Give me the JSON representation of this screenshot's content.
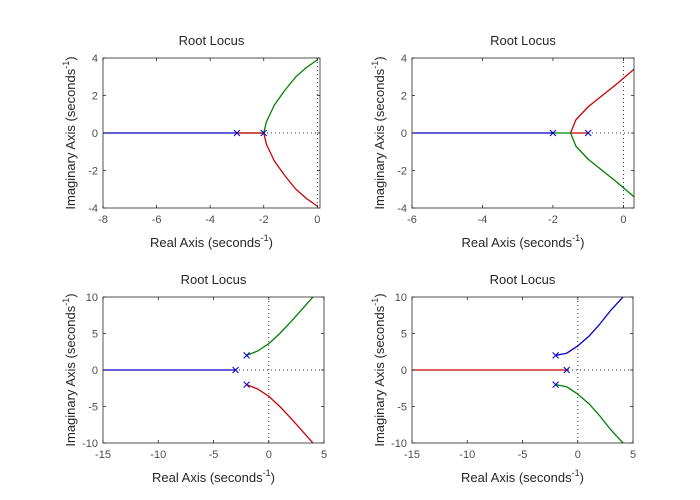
{
  "figure": {
    "background": "#ffffff",
    "axes_color": "#262626",
    "tick_label_color": "#4d4d4d"
  },
  "chart_data": [
    {
      "type": "line",
      "title": "Root Locus",
      "xlabel": "Real Axis (seconds",
      "ylabel": "Imaginary Axis (seconds",
      "label_exponent": "-1",
      "xlim": [
        -8,
        0.1
      ],
      "ylim": [
        -4,
        4
      ],
      "xticks": [
        -8,
        -6,
        -4,
        -2,
        0
      ],
      "yticks": [
        -4,
        -2,
        0,
        2,
        4
      ],
      "zero_lines": "dotted",
      "poles": [
        [
          -3,
          0
        ],
        [
          -2,
          0
        ]
      ],
      "series": [
        {
          "color": "#0000cc",
          "points": [
            [
              -8,
              0
            ],
            [
              -3,
              0
            ]
          ]
        },
        {
          "color": "#008000",
          "points": [
            [
              -3,
              0
            ],
            [
              -2,
              0
            ],
            [
              -1.9,
              0.6
            ],
            [
              -1.6,
              1.5
            ],
            [
              -1.2,
              2.3
            ],
            [
              -0.8,
              3.0
            ],
            [
              -0.4,
              3.5
            ],
            [
              0,
              3.9
            ]
          ]
        },
        {
          "color": "#cc0000",
          "points": [
            [
              -3,
              0
            ],
            [
              -2,
              0
            ],
            [
              -1.9,
              -0.6
            ],
            [
              -1.6,
              -1.5
            ],
            [
              -1.2,
              -2.3
            ],
            [
              -0.8,
              -3.0
            ],
            [
              -0.4,
              -3.5
            ],
            [
              0,
              -3.9
            ]
          ]
        }
      ]
    },
    {
      "type": "line",
      "title": "Root Locus",
      "xlabel": "Real Axis (seconds",
      "ylabel": "Imaginary Axis (seconds",
      "label_exponent": "-1",
      "xlim": [
        -6,
        0.3
      ],
      "ylim": [
        -4,
        4
      ],
      "xticks": [
        -6,
        -4,
        -2,
        0
      ],
      "yticks": [
        -4,
        -2,
        0,
        2,
        4
      ],
      "zero_lines": "dotted",
      "poles": [
        [
          -2,
          0
        ],
        [
          -1,
          0
        ]
      ],
      "series": [
        {
          "color": "#0000cc",
          "points": [
            [
              -6,
              0
            ],
            [
              -2,
              0
            ]
          ]
        },
        {
          "color": "#cc0000",
          "points": [
            [
              -1,
              0
            ],
            [
              -1.5,
              0
            ],
            [
              -1.35,
              0.7
            ],
            [
              -1.0,
              1.4
            ],
            [
              -0.6,
              2.0
            ],
            [
              -0.2,
              2.6
            ],
            [
              0.3,
              3.4
            ]
          ]
        },
        {
          "color": "#008000",
          "points": [
            [
              -2,
              0
            ],
            [
              -1.5,
              0
            ],
            [
              -1.35,
              -0.7
            ],
            [
              -1.0,
              -1.4
            ],
            [
              -0.6,
              -2.0
            ],
            [
              -0.2,
              -2.6
            ],
            [
              0.3,
              -3.4
            ]
          ]
        }
      ]
    },
    {
      "type": "line",
      "title": "Root Locus",
      "xlabel": "Real Axis (seconds",
      "ylabel": "Imaginary Axis (seconds",
      "label_exponent": "-1",
      "xlim": [
        -15,
        5
      ],
      "ylim": [
        -10,
        10
      ],
      "xticks": [
        -15,
        -10,
        -5,
        0,
        5
      ],
      "yticks": [
        -10,
        -5,
        0,
        5,
        10
      ],
      "zero_lines": "dotted",
      "poles": [
        [
          -3,
          0
        ],
        [
          -2,
          2
        ],
        [
          -2,
          -2
        ]
      ],
      "series": [
        {
          "color": "#0000cc",
          "points": [
            [
              -15,
              0
            ],
            [
              -3,
              0
            ]
          ]
        },
        {
          "color": "#008000",
          "points": [
            [
              -2,
              2
            ],
            [
              -1,
              2.6
            ],
            [
              0,
              3.6
            ],
            [
              1,
              5.0
            ],
            [
              2,
              6.6
            ],
            [
              3,
              8.3
            ],
            [
              4,
              10
            ]
          ]
        },
        {
          "color": "#cc0000",
          "points": [
            [
              -2,
              -2
            ],
            [
              -1,
              -2.6
            ],
            [
              0,
              -3.6
            ],
            [
              1,
              -5.0
            ],
            [
              2,
              -6.6
            ],
            [
              3,
              -8.3
            ],
            [
              4,
              -10
            ]
          ]
        }
      ]
    },
    {
      "type": "line",
      "title": "Root Locus",
      "xlabel": "Real Axis (seconds",
      "ylabel": "Imaginary Axis (seconds",
      "label_exponent": "-1",
      "xlim": [
        -15,
        5
      ],
      "ylim": [
        -10,
        10
      ],
      "xticks": [
        -15,
        -10,
        -5,
        0,
        5
      ],
      "yticks": [
        -10,
        -5,
        0,
        5,
        10
      ],
      "zero_lines": "dotted",
      "poles": [
        [
          -1,
          0
        ],
        [
          -2,
          2
        ],
        [
          -2,
          -2
        ]
      ],
      "series": [
        {
          "color": "#cc0000",
          "points": [
            [
              -15,
              0
            ],
            [
              -1,
              0
            ]
          ]
        },
        {
          "color": "#0000cc",
          "points": [
            [
              -2,
              2
            ],
            [
              -1,
              2.3
            ],
            [
              0,
              3.3
            ],
            [
              1,
              4.6
            ],
            [
              2,
              6.3
            ],
            [
              3,
              8.2
            ],
            [
              4.4,
              10.5
            ]
          ]
        },
        {
          "color": "#008000",
          "points": [
            [
              -2,
              -2
            ],
            [
              -1,
              -2.3
            ],
            [
              0,
              -3.3
            ],
            [
              1,
              -4.6
            ],
            [
              2,
              -6.3
            ],
            [
              3,
              -8.2
            ],
            [
              4.4,
              -10.5
            ]
          ]
        }
      ]
    }
  ]
}
